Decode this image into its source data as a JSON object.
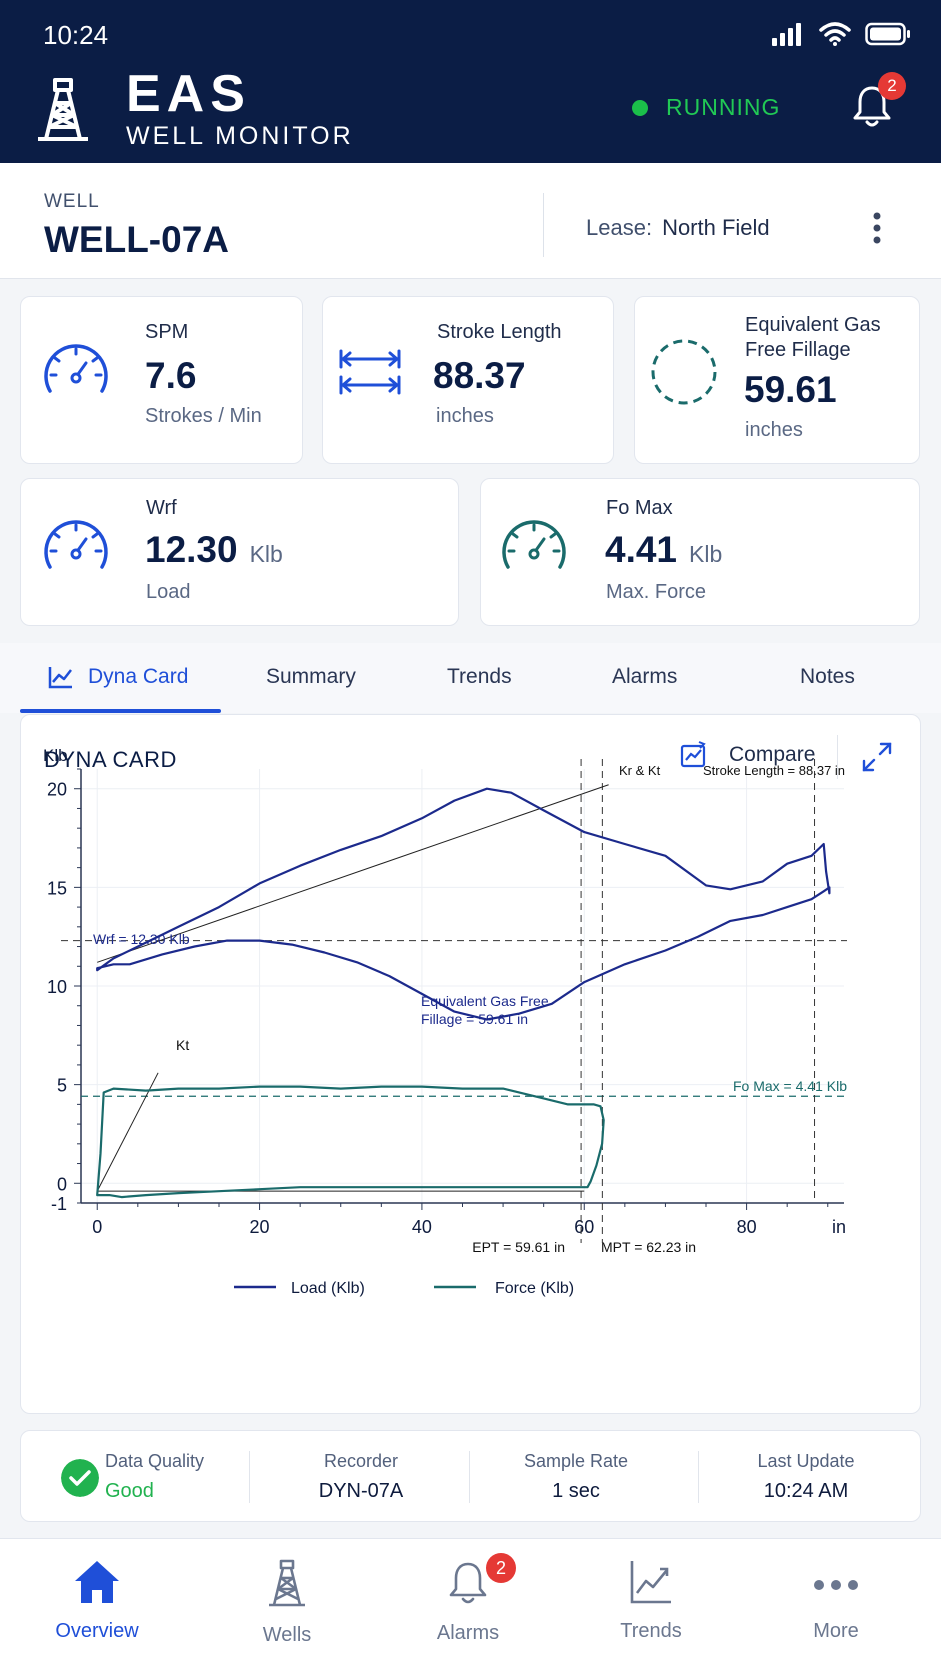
{
  "status_bar": {
    "time": "10:24"
  },
  "header": {
    "brand_title": "EAS",
    "brand_subtitle": "WELL MONITOR",
    "status": "RUNNING",
    "notification_count": "2"
  },
  "well": {
    "label": "WELL",
    "name": "WELL-07A",
    "lease_label": "Lease:",
    "lease_value": "North Field"
  },
  "metrics": {
    "spm": {
      "label": "SPM",
      "value": "7.6",
      "unit": "Strokes / Min"
    },
    "stroke": {
      "label": "Stroke Length",
      "value": "88.37",
      "unit": "inches"
    },
    "egff": {
      "label_line1": "Equivalent Gas",
      "label_line2": "Free Fillage",
      "value": "59.61",
      "unit": "inches"
    },
    "wrf": {
      "label": "Wrf",
      "value": "12.30",
      "unit": "Klb",
      "sub": "Load"
    },
    "fomax": {
      "label": "Fo Max",
      "value": "4.41",
      "unit": "Klb",
      "sub": "Max. Force"
    }
  },
  "tabs": [
    "Dyna Card",
    "Summary",
    "Trends",
    "Alarms",
    "Notes"
  ],
  "chart_card": {
    "title": "DYNA CARD",
    "compare_label": "Compare"
  },
  "chart_data": {
    "type": "line",
    "ylabel": "Klb",
    "xlabel": "in",
    "xlim": [
      -2,
      92
    ],
    "ylim": [
      -1,
      21
    ],
    "x_ticks": [
      0,
      20,
      40,
      60,
      80
    ],
    "y_ticks": [
      20,
      15,
      10,
      5,
      0,
      -1
    ],
    "x_tick_labels": [
      "0",
      "20",
      "40",
      "60",
      "80"
    ],
    "y_tick_labels": [
      "20",
      "15",
      "10",
      "5",
      "0",
      "-1"
    ],
    "series": [
      {
        "name": "Load (Klb)",
        "color": "#1c2a8c",
        "x": [
          0,
          2,
          6,
          10,
          15,
          20,
          25,
          30,
          35,
          40,
          44,
          48,
          51,
          55,
          60,
          65,
          70,
          75,
          78,
          82,
          85,
          88,
          89.5,
          89.8,
          90.2,
          90.2,
          89.5,
          88,
          85,
          82,
          78,
          74,
          70,
          65,
          60,
          56,
          52,
          48,
          44,
          40,
          36,
          32,
          28,
          24,
          20,
          16,
          12,
          8,
          4,
          2,
          0
        ],
        "y": [
          10.8,
          11.4,
          12.2,
          13.0,
          14.0,
          15.2,
          16.1,
          16.9,
          17.6,
          18.5,
          19.4,
          20.0,
          19.8,
          18.9,
          17.8,
          17.2,
          16.6,
          15.1,
          14.9,
          15.3,
          16.2,
          16.6,
          17.2,
          15.8,
          14.7,
          15.0,
          14.8,
          14.4,
          14.0,
          13.6,
          13.3,
          12.5,
          11.8,
          11.1,
          10.2,
          9.1,
          8.6,
          8.3,
          8.7,
          9.6,
          10.5,
          11.2,
          11.7,
          12.1,
          12.3,
          12.3,
          12.0,
          11.6,
          11.1,
          11.1,
          10.9
        ]
      },
      {
        "name": "Force (Klb)",
        "color": "#1a6b6b",
        "x": [
          0,
          0.4,
          0.8,
          2,
          6,
          10,
          15,
          20,
          25,
          30,
          35,
          40,
          45,
          50,
          55,
          58,
          60,
          61.2,
          62,
          62.4,
          62.2,
          61.5,
          60.8,
          60.4,
          60,
          55,
          50,
          45,
          40,
          35,
          30,
          25,
          20,
          15,
          10,
          6,
          3,
          1.5,
          0
        ],
        "y": [
          -0.6,
          1.5,
          4.6,
          4.8,
          4.7,
          4.8,
          4.8,
          4.9,
          4.9,
          4.8,
          4.9,
          4.9,
          4.8,
          4.8,
          4.3,
          4.0,
          4.0,
          4.0,
          3.9,
          3.2,
          2.0,
          0.9,
          0.1,
          -0.2,
          -0.2,
          -0.2,
          -0.2,
          -0.2,
          -0.2,
          -0.2,
          -0.2,
          -0.2,
          -0.3,
          -0.4,
          -0.5,
          -0.6,
          -0.7,
          -0.6,
          -0.6
        ]
      }
    ],
    "reference_lines": {
      "wrf": 12.3,
      "fo_max": 4.41,
      "ept": 59.61,
      "mpt": 62.23,
      "stroke_length": 88.37
    },
    "annotations": {
      "wrf": "Wrf = 12.30 Klb",
      "kr_kt": "Kr & Kt",
      "stroke_length": "Stroke Length = 88.37 in",
      "egff_line1": "Equivalent Gas Free",
      "egff_line2": "Fillage = 59.61 in",
      "kt": "Kt",
      "fo_max": "Fo Max = 4.41 Klb",
      "ept": "EPT = 59.61 in",
      "mpt": "MPT = 62.23 in"
    },
    "legend": [
      "Load (Klb)",
      "Force (Klb)"
    ],
    "legend_position": "bottom",
    "grid": true
  },
  "info": {
    "quality_label": "Data Quality",
    "quality_value": "Good",
    "recorder_label": "Recorder",
    "recorder_value": "DYN-07A",
    "rate_label": "Sample Rate",
    "rate_value": "1 sec",
    "update_label": "Last Update",
    "update_value": "10:24 AM"
  },
  "bottom_nav": {
    "items": [
      "Overview",
      "Wells",
      "Alarms",
      "Trends",
      "More"
    ],
    "alarms_badge": "2"
  },
  "colors": {
    "header_bg": "#0b1d45",
    "accent": "#1f4fd8",
    "running": "#21c955",
    "load": "#1c2a8c",
    "force": "#1a6b6b",
    "badge": "#e53935"
  }
}
